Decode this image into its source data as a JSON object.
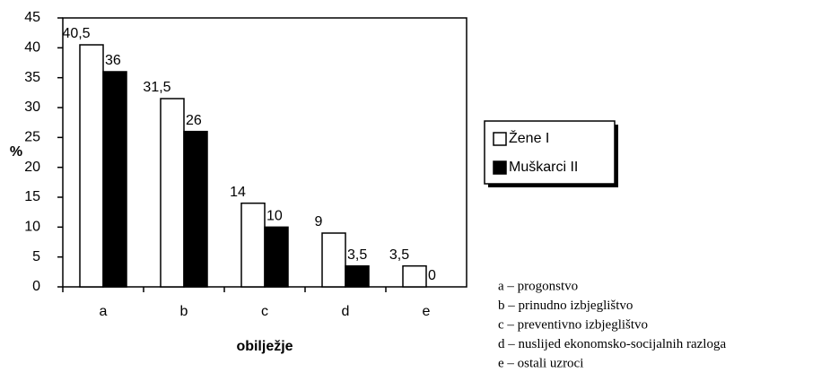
{
  "chart_data": {
    "type": "bar",
    "categories": [
      "a",
      "b",
      "c",
      "d",
      "e"
    ],
    "series": [
      {
        "name": "Žene I",
        "color": "#ffffff",
        "values": [
          40.5,
          31.5,
          14,
          9,
          3.5
        ],
        "value_labels": [
          "40,5",
          "31,5",
          "14",
          "9",
          "3,5"
        ]
      },
      {
        "name": "Muškarci II",
        "color": "#000000",
        "values": [
          36,
          26,
          10,
          3.5,
          0
        ],
        "value_labels": [
          "36",
          "26",
          "10",
          "3,5",
          "0"
        ]
      }
    ],
    "y_label": "%",
    "x_label": "obilježje",
    "ylim": [
      0,
      45
    ],
    "yticks": [
      0,
      5,
      10,
      15,
      20,
      25,
      30,
      35,
      40,
      45
    ],
    "legend": "right",
    "notes": [
      "a – progonstvo",
      "b – prinudno izbjeglištvo",
      "c – preventivno izbjeglištvo",
      "d – nuslijed ekonomsko-socijalnih razloga",
      "e – ostali uzroci"
    ]
  }
}
